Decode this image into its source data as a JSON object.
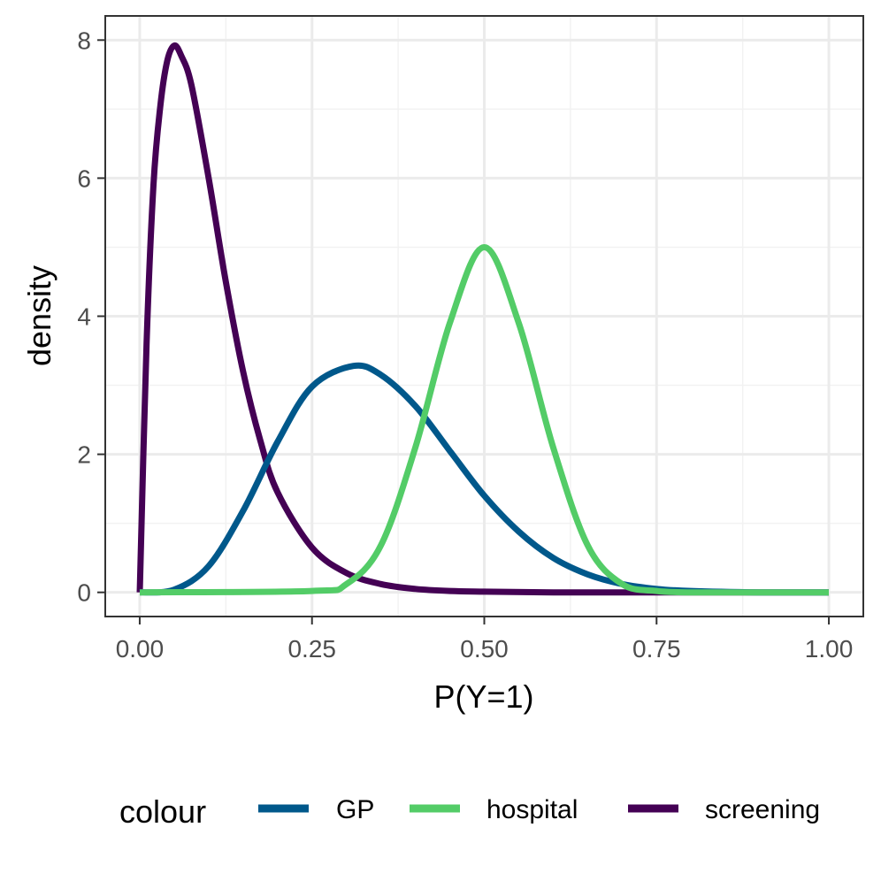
{
  "chart_data": {
    "type": "line",
    "xlabel": "P(Y=1)",
    "ylabel": "density",
    "xlim": [
      -0.05,
      1.05
    ],
    "ylim": [
      -0.35,
      8.35
    ],
    "xticks": [
      0,
      0.25,
      0.5,
      0.75,
      1
    ],
    "xtick_labels": [
      "0.00",
      "0.25",
      "0.50",
      "0.75",
      "1.00"
    ],
    "yticks": [
      0,
      2,
      4,
      6,
      8
    ],
    "ytick_labels": [
      "0",
      "2",
      "4",
      "6",
      "8"
    ],
    "grid": true,
    "legend": {
      "title": "colour",
      "position": "bottom"
    },
    "series": [
      {
        "name": "GP",
        "color": "#00588b",
        "x": [
          0,
          0.05,
          0.1,
          0.15,
          0.2,
          0.25,
          0.31,
          0.35,
          0.4,
          0.45,
          0.5,
          0.55,
          0.6,
          0.65,
          0.7,
          0.75,
          0.8,
          0.9,
          1
        ],
        "y": [
          0,
          0.04,
          0.38,
          1.18,
          2.18,
          2.98,
          3.28,
          3.15,
          2.7,
          2.05,
          1.4,
          0.88,
          0.5,
          0.26,
          0.12,
          0.05,
          0.02,
          0,
          0
        ]
      },
      {
        "name": "hospital",
        "color": "#53cc67",
        "x": [
          0,
          0.25,
          0.3,
          0.35,
          0.4,
          0.45,
          0.5,
          0.55,
          0.6,
          0.65,
          0.7,
          0.75,
          0.8,
          0.9,
          1
        ],
        "y": [
          0,
          0.02,
          0.12,
          0.68,
          2.1,
          3.9,
          5.0,
          3.9,
          2.1,
          0.68,
          0.12,
          0.02,
          0,
          0,
          0
        ]
      },
      {
        "name": "screening",
        "color": "#440154",
        "x": [
          0,
          0.01,
          0.02,
          0.03,
          0.04,
          0.05,
          0.06,
          0.075,
          0.1,
          0.125,
          0.15,
          0.175,
          0.2,
          0.25,
          0.3,
          0.35,
          0.4,
          0.45,
          0.5,
          0.6,
          0.75,
          1
        ],
        "y": [
          0,
          3.6,
          5.9,
          7.05,
          7.7,
          7.92,
          7.78,
          7.35,
          6.0,
          4.5,
          3.2,
          2.2,
          1.45,
          0.65,
          0.28,
          0.12,
          0.05,
          0.02,
          0.01,
          0,
          0,
          0
        ]
      }
    ]
  }
}
